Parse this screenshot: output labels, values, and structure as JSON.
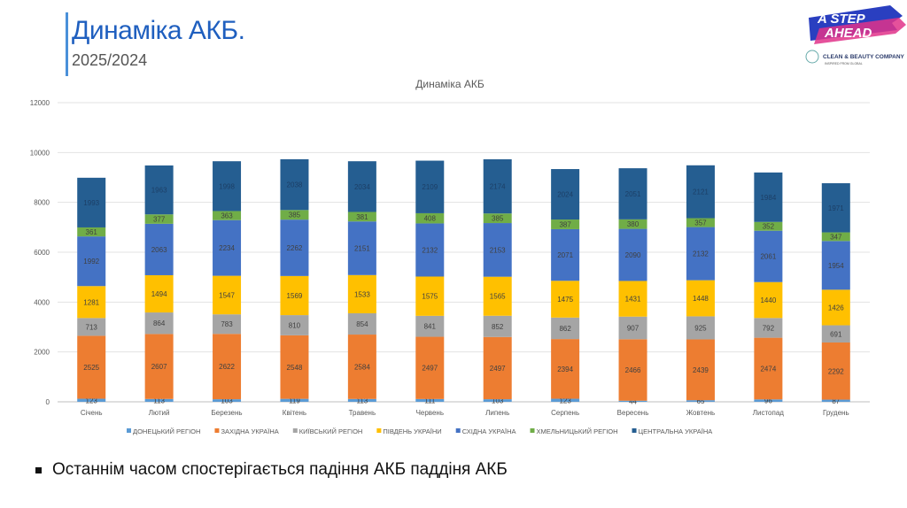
{
  "header": {
    "title": "Динаміка АКБ.",
    "subtitle": "2025/2024"
  },
  "logo": {
    "text_main": "A STEP AHEAD",
    "text_company": "CLEAN & BEAUTY COMPANY",
    "text_small": "INSPIRED FROM GLOBAL"
  },
  "bullet": {
    "text": "Останнім часом спостерігається падіння АКБ паддіня АКБ"
  },
  "chart_data": {
    "type": "bar",
    "stacked": true,
    "title": "Динаміка АКБ",
    "xlabel": "",
    "ylabel": "",
    "ylim": [
      0,
      12000
    ],
    "yticks": [
      0,
      2000,
      4000,
      6000,
      8000,
      10000,
      12000
    ],
    "grid": true,
    "legend_position": "bottom",
    "categories": [
      "Січень",
      "Лютий",
      "Березень",
      "Квітень",
      "Травень",
      "Червень",
      "Липень",
      "Серпень",
      "Вересень",
      "Жовтень",
      "Листопад",
      "Грудень"
    ],
    "series": [
      {
        "name": "ДОНЕЦЬКИЙ РЕГІОН",
        "color": "#5b9bd5",
        "values": [
          123,
          113,
          103,
          119,
          113,
          111,
          103,
          123,
          44,
          65,
          96,
          87
        ]
      },
      {
        "name": "ЗАХІДНА УКРАЇНА",
        "color": "#ed7d31",
        "values": [
          2525,
          2607,
          2622,
          2548,
          2584,
          2497,
          2497,
          2394,
          2466,
          2439,
          2474,
          2292
        ]
      },
      {
        "name": "КИЇВСЬКИЙ РЕГІОН",
        "color": "#a5a5a5",
        "values": [
          713,
          864,
          783,
          810,
          854,
          841,
          852,
          862,
          907,
          925,
          792,
          691
        ]
      },
      {
        "name": "ПІВДЕНЬ УКРАЇНИ",
        "color": "#ffc000",
        "values": [
          1281,
          1494,
          1547,
          1569,
          1533,
          1575,
          1565,
          1475,
          1431,
          1448,
          1440,
          1426
        ]
      },
      {
        "name": "СХІДНА УКРАЇНА",
        "color": "#4472c4",
        "values": [
          1992,
          2063,
          2234,
          2262,
          2151,
          2132,
          2153,
          2071,
          2090,
          2132,
          2061,
          1954
        ]
      },
      {
        "name": "ХМЕЛЬНИЦЬКИЙ РЕГІОН",
        "color": "#70ad47",
        "values": [
          361,
          377,
          363,
          385,
          381,
          408,
          385,
          387,
          380,
          357,
          352,
          347
        ]
      },
      {
        "name": "ЦЕНТРАЛЬНА УКРАЇНА",
        "color": "#255e91",
        "values": [
          1993,
          1963,
          1998,
          2038,
          2034,
          2109,
          2174,
          2024,
          2051,
          2121,
          1984,
          1971
        ]
      }
    ]
  }
}
